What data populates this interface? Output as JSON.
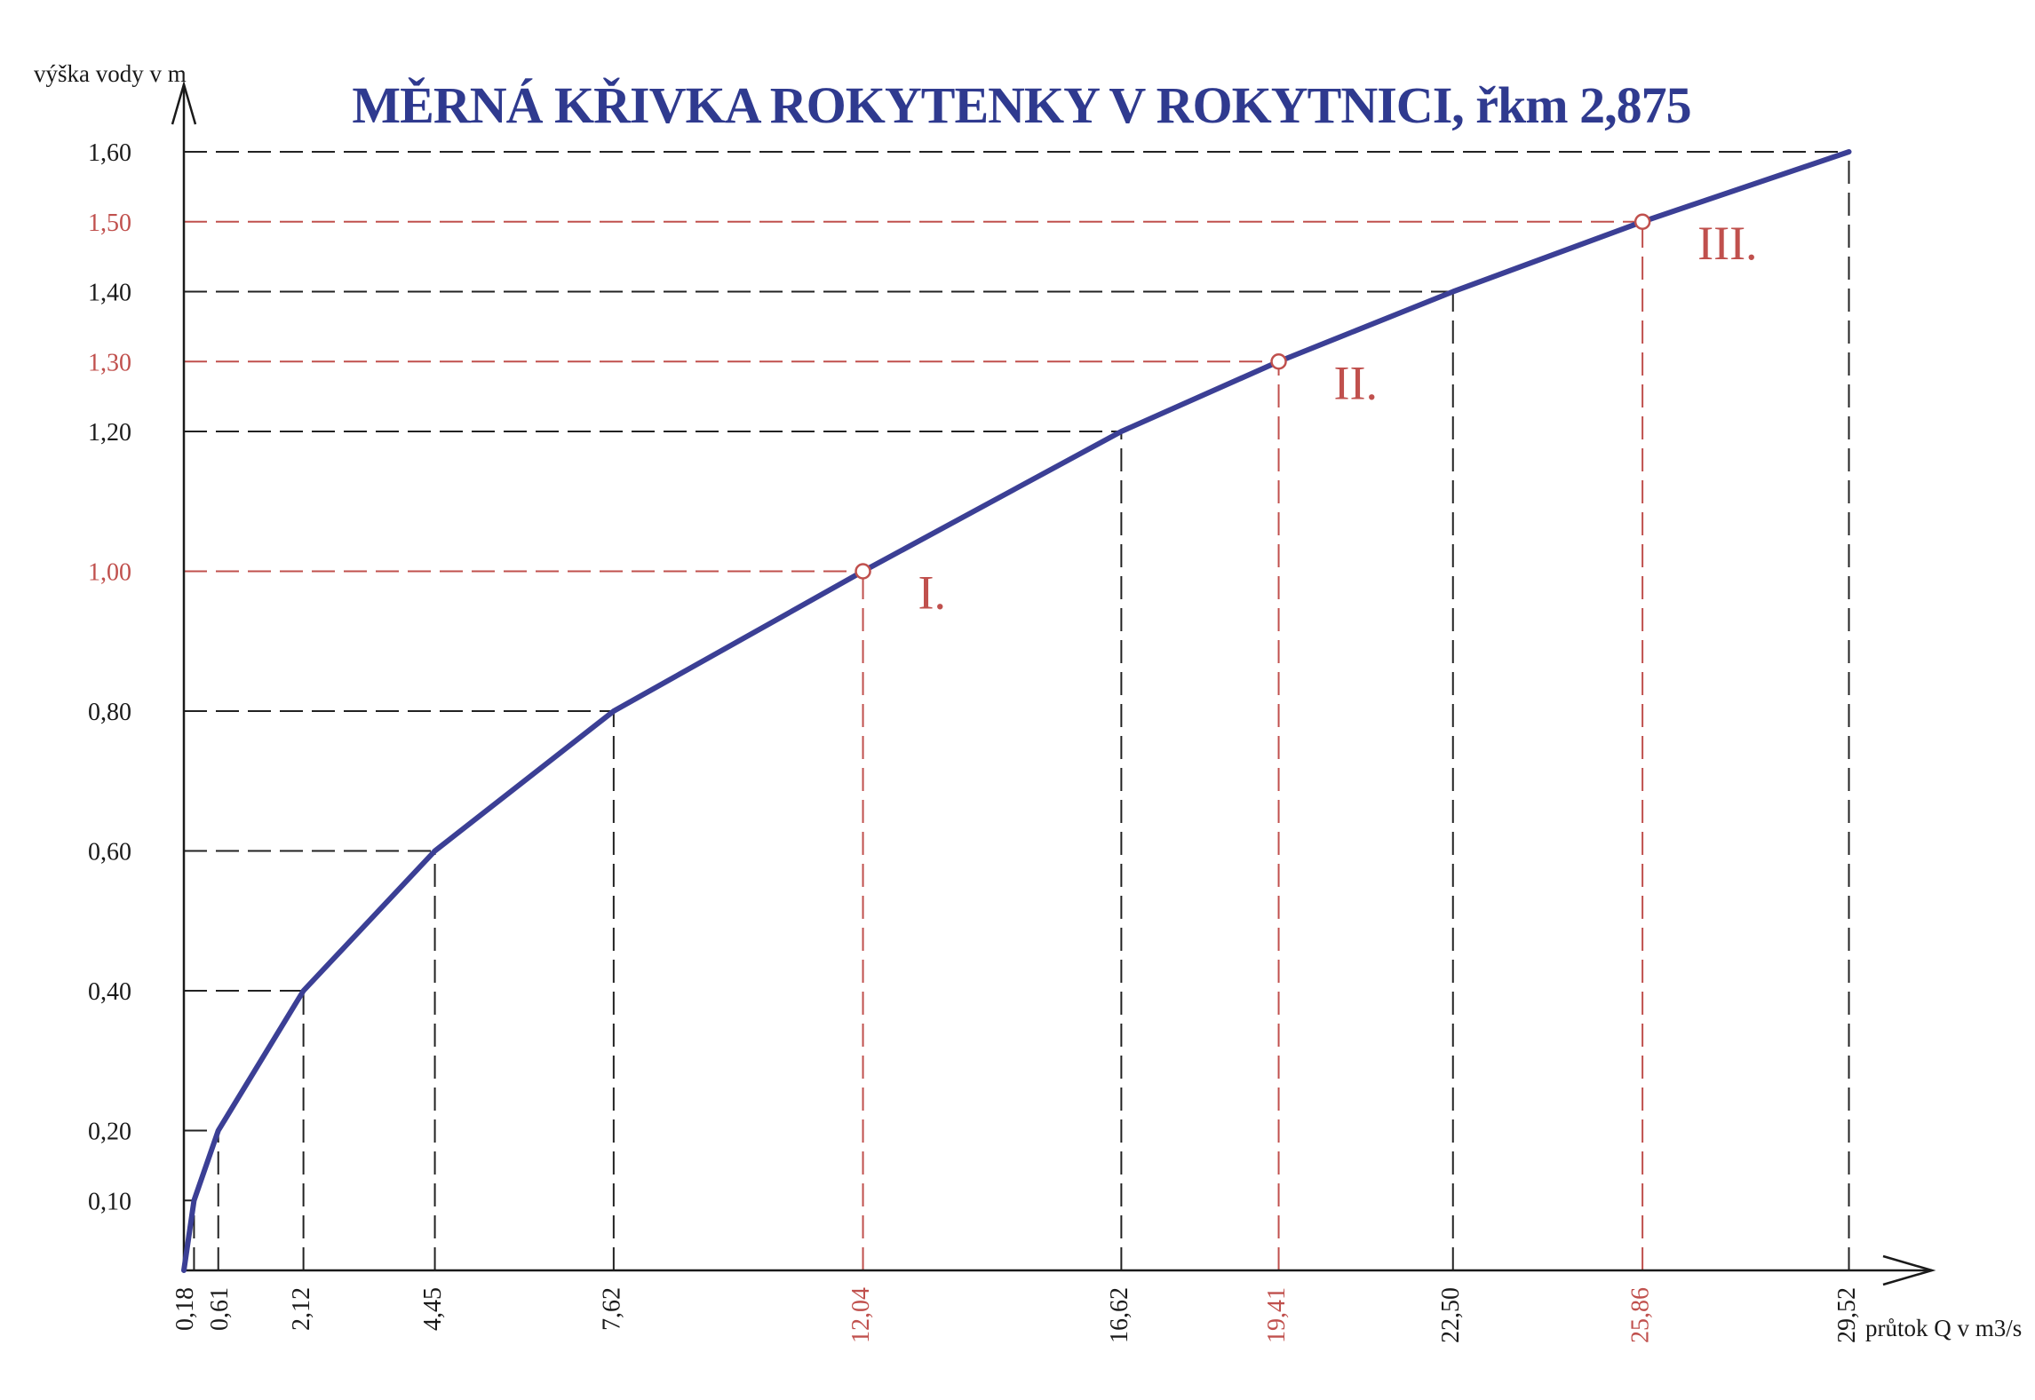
{
  "chart_data": {
    "type": "line",
    "title": "MĚRNÁ KŘIVKA ROKYTENKY V ROKYTNICI, řkm 2,875",
    "ylabel": "výška vody v m",
    "xlabel": "průtok Q v m3/s",
    "xlim": [
      0,
      30.5
    ],
    "ylim": [
      0,
      1.6
    ],
    "series": [
      {
        "x": [
          0,
          0.18,
          0.61,
          2.12,
          4.45,
          7.62,
          12.04,
          16.62,
          19.41,
          22.5,
          25.86,
          29.52
        ],
        "y": [
          0,
          0.1,
          0.2,
          0.4,
          0.6,
          0.8,
          1.0,
          1.2,
          1.3,
          1.4,
          1.5,
          1.6
        ],
        "color": "#3b3f95"
      }
    ],
    "y_ticks": [
      {
        "value": 0.1,
        "label": "0,10",
        "highlight": false
      },
      {
        "value": 0.2,
        "label": "0,20",
        "highlight": false
      },
      {
        "value": 0.4,
        "label": "0,40",
        "highlight": false
      },
      {
        "value": 0.6,
        "label": "0,60",
        "highlight": false
      },
      {
        "value": 0.8,
        "label": "0,80",
        "highlight": false
      },
      {
        "value": 1.0,
        "label": "1,00",
        "highlight": true
      },
      {
        "value": 1.2,
        "label": "1,20",
        "highlight": false
      },
      {
        "value": 1.3,
        "label": "1,30",
        "highlight": true
      },
      {
        "value": 1.4,
        "label": "1,40",
        "highlight": false
      },
      {
        "value": 1.5,
        "label": "1,50",
        "highlight": true
      },
      {
        "value": 1.6,
        "label": "1,60",
        "highlight": false
      }
    ],
    "x_ticks": [
      {
        "value": 0.18,
        "label": "0,18",
        "highlight": false
      },
      {
        "value": 0.61,
        "label": "0,61",
        "highlight": false
      },
      {
        "value": 2.12,
        "label": "2,12",
        "highlight": false
      },
      {
        "value": 4.45,
        "label": "4,45",
        "highlight": false
      },
      {
        "value": 7.62,
        "label": "7,62",
        "highlight": false
      },
      {
        "value": 12.04,
        "label": "12,04",
        "highlight": true
      },
      {
        "value": 16.62,
        "label": "16,62",
        "highlight": false
      },
      {
        "value": 19.41,
        "label": "19,41",
        "highlight": true
      },
      {
        "value": 22.5,
        "label": "22,50",
        "highlight": false
      },
      {
        "value": 25.86,
        "label": "25,86",
        "highlight": true
      },
      {
        "value": 29.52,
        "label": "29,52",
        "highlight": false
      }
    ],
    "annotations": [
      {
        "x": 12.04,
        "y": 1.0,
        "label": "I."
      },
      {
        "x": 19.41,
        "y": 1.3,
        "label": "II."
      },
      {
        "x": 25.86,
        "y": 1.5,
        "label": "III."
      }
    ],
    "colors": {
      "curve": "#3b3f95",
      "title": "#2f3a8f",
      "highlight": "#c0504d",
      "text": "#1a1a1a",
      "guide": "#222222"
    }
  }
}
